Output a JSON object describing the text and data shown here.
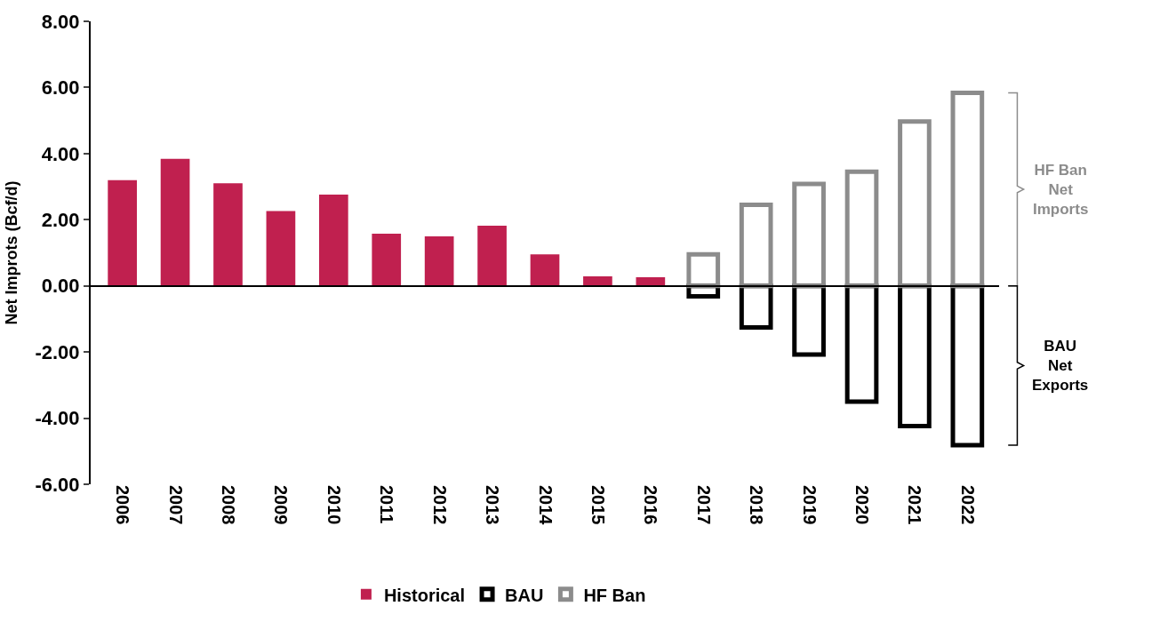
{
  "chart_data": {
    "type": "bar",
    "stacked": true,
    "ylabel": "Net Improts (Bcf/d)",
    "categories": [
      "2006",
      "2007",
      "2008",
      "2009",
      "2010",
      "2011",
      "2012",
      "2013",
      "2014",
      "2015",
      "2016",
      "2017",
      "2018",
      "2019",
      "2020",
      "2021",
      "2022"
    ],
    "series": [
      {
        "name": "Historical",
        "color": "#c0204f",
        "values": [
          3.2,
          3.84,
          3.1,
          2.26,
          2.76,
          1.58,
          1.5,
          1.82,
          0.95,
          0.29,
          0.26,
          null,
          null,
          null,
          null,
          null,
          null
        ]
      },
      {
        "name": "BAU",
        "color": "#000000",
        "values": [
          null,
          null,
          null,
          null,
          null,
          null,
          null,
          null,
          null,
          null,
          null,
          -0.32,
          -1.26,
          -2.08,
          -3.5,
          -4.24,
          -4.82
        ]
      },
      {
        "name": "HF Ban",
        "color": "#8c8c8c",
        "values": [
          null,
          null,
          null,
          null,
          null,
          null,
          null,
          null,
          null,
          null,
          null,
          0.95,
          2.45,
          3.08,
          3.45,
          4.97,
          5.84
        ]
      }
    ],
    "ylim": [
      -6,
      8
    ],
    "yticks": [
      {
        "value": -6,
        "label": "-6.00"
      },
      {
        "value": -4,
        "label": "-4.00"
      },
      {
        "value": -2,
        "label": "-2.00"
      },
      {
        "value": 0,
        "label": "0.00"
      },
      {
        "value": 2,
        "label": "2.00"
      },
      {
        "value": 4,
        "label": "4.00"
      },
      {
        "value": 6,
        "label": "6.00"
      },
      {
        "value": 8,
        "label": "8.00"
      }
    ],
    "annotations": [
      "HF Ban\nNet\nImports",
      "BAU\nNet\nExports"
    ],
    "legend": "bottom"
  }
}
